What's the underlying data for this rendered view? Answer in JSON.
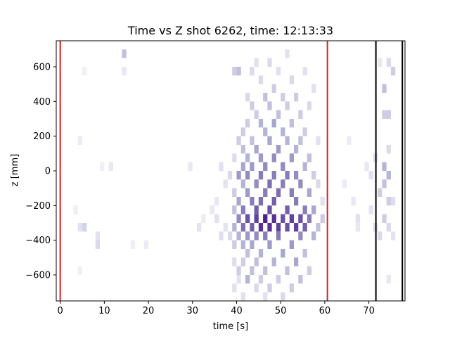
{
  "chart_data": {
    "type": "heatmap",
    "title": "Time vs Z shot 6262, time: 12:13:33",
    "xlabel": "time [s]",
    "ylabel": "z [mm]",
    "xlim": [
      -0.9,
      78.2
    ],
    "ylim": [
      -750,
      750
    ],
    "x_ticks": [
      0,
      10,
      20,
      30,
      40,
      50,
      60,
      70
    ],
    "y_ticks": [
      -600,
      -400,
      -200,
      0,
      200,
      400,
      600
    ],
    "x_tick_labels": [
      "0",
      "10",
      "20",
      "30",
      "40",
      "50",
      "60",
      "70"
    ],
    "y_tick_labels": [
      "−600",
      "−400",
      "−200",
      "0",
      "200",
      "400",
      "600"
    ],
    "colormap": "Purples",
    "color_range": [
      0,
      1
    ],
    "vlines": [
      {
        "x": 0,
        "color": "#e31a1c"
      },
      {
        "x": 60.6,
        "color": "#e31a1c"
      },
      {
        "x": 71.6,
        "color": "#000000"
      },
      {
        "x": 77.6,
        "color": "#000000"
      }
    ],
    "cells": [
      {
        "t": 14,
        "z": 675,
        "v": 0.35
      },
      {
        "t": 14,
        "z": 575,
        "v": 0.15
      },
      {
        "t": 5,
        "z": 575,
        "v": 0.08
      },
      {
        "t": 4,
        "z": 175,
        "v": 0.12
      },
      {
        "t": 9,
        "z": 25,
        "v": 0.1
      },
      {
        "t": 11,
        "z": 25,
        "v": 0.15
      },
      {
        "t": 5,
        "z": -325,
        "v": 0.28
      },
      {
        "t": 4,
        "z": -325,
        "v": 0.2
      },
      {
        "t": 8,
        "z": -375,
        "v": 0.2
      },
      {
        "t": 8,
        "z": -425,
        "v": 0.25
      },
      {
        "t": 4,
        "z": -575,
        "v": 0.08
      },
      {
        "t": 3,
        "z": -225,
        "v": 0.1
      },
      {
        "t": 16,
        "z": -425,
        "v": 0.1
      },
      {
        "t": 19,
        "z": -425,
        "v": 0.12
      },
      {
        "t": 29,
        "z": 25,
        "v": 0.15
      },
      {
        "t": 31,
        "z": -325,
        "v": 0.18
      },
      {
        "t": 32,
        "z": -275,
        "v": 0.12
      },
      {
        "t": 34,
        "z": -225,
        "v": 0.15
      },
      {
        "t": 35,
        "z": -275,
        "v": 0.2
      },
      {
        "t": 36,
        "z": -375,
        "v": 0.22
      },
      {
        "t": 37,
        "z": -325,
        "v": 0.18
      },
      {
        "t": 38,
        "z": -375,
        "v": 0.25
      },
      {
        "t": 35,
        "z": -175,
        "v": 0.15
      },
      {
        "t": 36,
        "z": 25,
        "v": 0.2
      },
      {
        "t": 37,
        "z": -75,
        "v": 0.18
      },
      {
        "t": 38,
        "z": -25,
        "v": 0.25
      },
      {
        "t": 39,
        "z": -125,
        "v": 0.3
      },
      {
        "t": 39,
        "z": -225,
        "v": 0.35
      },
      {
        "t": 39,
        "z": -325,
        "v": 0.4
      },
      {
        "t": 39,
        "z": -425,
        "v": 0.3
      },
      {
        "t": 39,
        "z": -525,
        "v": 0.22
      },
      {
        "t": 39,
        "z": -675,
        "v": 0.2
      },
      {
        "t": 39,
        "z": 75,
        "v": 0.22
      },
      {
        "t": 39,
        "z": 575,
        "v": 0.3
      },
      {
        "t": 40,
        "z": 575,
        "v": 0.35
      },
      {
        "t": 40,
        "z": 175,
        "v": 0.3
      },
      {
        "t": 40,
        "z": -25,
        "v": 0.5
      },
      {
        "t": 40,
        "z": -175,
        "v": 0.45
      },
      {
        "t": 40,
        "z": -275,
        "v": 0.55
      },
      {
        "t": 40,
        "z": -375,
        "v": 0.4
      },
      {
        "t": 40,
        "z": -575,
        "v": 0.3
      },
      {
        "t": 40,
        "z": -625,
        "v": 0.2
      },
      {
        "t": 41,
        "z": 225,
        "v": 0.3
      },
      {
        "t": 41,
        "z": 125,
        "v": 0.35
      },
      {
        "t": 41,
        "z": 25,
        "v": 0.45
      },
      {
        "t": 41,
        "z": -75,
        "v": 0.4
      },
      {
        "t": 41,
        "z": -225,
        "v": 0.6
      },
      {
        "t": 41,
        "z": -325,
        "v": 0.65
      },
      {
        "t": 41,
        "z": -425,
        "v": 0.4
      },
      {
        "t": 41,
        "z": -525,
        "v": 0.3
      },
      {
        "t": 41,
        "z": -725,
        "v": 0.2
      },
      {
        "t": 42,
        "z": 425,
        "v": 0.25
      },
      {
        "t": 42,
        "z": 275,
        "v": 0.3
      },
      {
        "t": 42,
        "z": 75,
        "v": 0.4
      },
      {
        "t": 42,
        "z": -25,
        "v": 0.55
      },
      {
        "t": 42,
        "z": -125,
        "v": 0.5
      },
      {
        "t": 42,
        "z": -275,
        "v": 0.75
      },
      {
        "t": 42,
        "z": -375,
        "v": 0.5
      },
      {
        "t": 42,
        "z": -475,
        "v": 0.35
      },
      {
        "t": 42,
        "z": -625,
        "v": 0.4
      },
      {
        "t": 43,
        "z": 575,
        "v": 0.25
      },
      {
        "t": 43,
        "z": 375,
        "v": 0.3
      },
      {
        "t": 43,
        "z": 175,
        "v": 0.35
      },
      {
        "t": 43,
        "z": 25,
        "v": 0.5
      },
      {
        "t": 43,
        "z": -175,
        "v": 0.6
      },
      {
        "t": 43,
        "z": -325,
        "v": 0.7
      },
      {
        "t": 43,
        "z": -425,
        "v": 0.45
      },
      {
        "t": 43,
        "z": -575,
        "v": 0.35
      },
      {
        "t": 44,
        "z": 625,
        "v": 0.2
      },
      {
        "t": 44,
        "z": 325,
        "v": 0.3
      },
      {
        "t": 44,
        "z": 125,
        "v": 0.45
      },
      {
        "t": 44,
        "z": -75,
        "v": 0.55
      },
      {
        "t": 44,
        "z": -225,
        "v": 0.7
      },
      {
        "t": 44,
        "z": -275,
        "v": 0.8
      },
      {
        "t": 44,
        "z": -375,
        "v": 0.55
      },
      {
        "t": 44,
        "z": -525,
        "v": 0.35
      },
      {
        "t": 44,
        "z": -675,
        "v": 0.25
      },
      {
        "t": 45,
        "z": 525,
        "v": 0.25
      },
      {
        "t": 45,
        "z": 275,
        "v": 0.4
      },
      {
        "t": 45,
        "z": 75,
        "v": 0.5
      },
      {
        "t": 45,
        "z": -25,
        "v": 0.6
      },
      {
        "t": 45,
        "z": -175,
        "v": 0.65
      },
      {
        "t": 45,
        "z": -325,
        "v": 0.85
      },
      {
        "t": 45,
        "z": -475,
        "v": 0.4
      },
      {
        "t": 45,
        "z": -625,
        "v": 0.3
      },
      {
        "t": 46,
        "z": 425,
        "v": 0.35
      },
      {
        "t": 46,
        "z": 225,
        "v": 0.4
      },
      {
        "t": 46,
        "z": 25,
        "v": 0.55
      },
      {
        "t": 46,
        "z": -125,
        "v": 0.6
      },
      {
        "t": 46,
        "z": -275,
        "v": 0.9
      },
      {
        "t": 46,
        "z": -375,
        "v": 0.6
      },
      {
        "t": 46,
        "z": -575,
        "v": 0.35
      },
      {
        "t": 46,
        "z": -725,
        "v": 0.2
      },
      {
        "t": 47,
        "z": 625,
        "v": 0.25
      },
      {
        "t": 47,
        "z": 375,
        "v": 0.35
      },
      {
        "t": 47,
        "z": 175,
        "v": 0.45
      },
      {
        "t": 47,
        "z": -75,
        "v": 0.65
      },
      {
        "t": 47,
        "z": -225,
        "v": 0.75
      },
      {
        "t": 47,
        "z": -325,
        "v": 0.85
      },
      {
        "t": 47,
        "z": -425,
        "v": 0.5
      },
      {
        "t": 47,
        "z": -675,
        "v": 0.3
      },
      {
        "t": 48,
        "z": 475,
        "v": 0.3
      },
      {
        "t": 48,
        "z": 275,
        "v": 0.45
      },
      {
        "t": 48,
        "z": 75,
        "v": 0.55
      },
      {
        "t": 48,
        "z": -25,
        "v": 0.6
      },
      {
        "t": 48,
        "z": -175,
        "v": 0.7
      },
      {
        "t": 48,
        "z": -275,
        "v": 0.85
      },
      {
        "t": 48,
        "z": -525,
        "v": 0.4
      },
      {
        "t": 49,
        "z": 575,
        "v": 0.2
      },
      {
        "t": 49,
        "z": 325,
        "v": 0.35
      },
      {
        "t": 49,
        "z": 125,
        "v": 0.5
      },
      {
        "t": 49,
        "z": -125,
        "v": 0.65
      },
      {
        "t": 49,
        "z": -325,
        "v": 0.8
      },
      {
        "t": 49,
        "z": -375,
        "v": 0.6
      },
      {
        "t": 49,
        "z": -625,
        "v": 0.3
      },
      {
        "t": 50,
        "z": 425,
        "v": 0.3
      },
      {
        "t": 50,
        "z": 225,
        "v": 0.4
      },
      {
        "t": 50,
        "z": 25,
        "v": 0.55
      },
      {
        "t": 50,
        "z": -75,
        "v": 0.6
      },
      {
        "t": 50,
        "z": -275,
        "v": 0.75
      },
      {
        "t": 50,
        "z": -475,
        "v": 0.45
      },
      {
        "t": 50,
        "z": -725,
        "v": 0.25
      },
      {
        "t": 51,
        "z": 675,
        "v": 0.2
      },
      {
        "t": 51,
        "z": 375,
        "v": 0.3
      },
      {
        "t": 51,
        "z": 175,
        "v": 0.4
      },
      {
        "t": 51,
        "z": -25,
        "v": 0.6
      },
      {
        "t": 51,
        "z": -225,
        "v": 0.7
      },
      {
        "t": 51,
        "z": -325,
        "v": 0.75
      },
      {
        "t": 51,
        "z": -575,
        "v": 0.35
      },
      {
        "t": 52,
        "z": 525,
        "v": 0.25
      },
      {
        "t": 52,
        "z": 275,
        "v": 0.35
      },
      {
        "t": 52,
        "z": 75,
        "v": 0.5
      },
      {
        "t": 52,
        "z": -125,
        "v": 0.6
      },
      {
        "t": 52,
        "z": -275,
        "v": 0.8
      },
      {
        "t": 52,
        "z": -425,
        "v": 0.5
      },
      {
        "t": 52,
        "z": -675,
        "v": 0.3
      },
      {
        "t": 53,
        "z": 425,
        "v": 0.3
      },
      {
        "t": 53,
        "z": 125,
        "v": 0.4
      },
      {
        "t": 53,
        "z": -25,
        "v": 0.55
      },
      {
        "t": 53,
        "z": -175,
        "v": 0.6
      },
      {
        "t": 53,
        "z": -325,
        "v": 0.8
      },
      {
        "t": 53,
        "z": -525,
        "v": 0.45
      },
      {
        "t": 54,
        "z": 325,
        "v": 0.3
      },
      {
        "t": 54,
        "z": 175,
        "v": 0.35
      },
      {
        "t": 54,
        "z": -75,
        "v": 0.55
      },
      {
        "t": 54,
        "z": -275,
        "v": 0.75
      },
      {
        "t": 54,
        "z": -375,
        "v": 0.55
      },
      {
        "t": 54,
        "z": -625,
        "v": 0.35
      },
      {
        "t": 55,
        "z": 575,
        "v": 0.2
      },
      {
        "t": 55,
        "z": 225,
        "v": 0.3
      },
      {
        "t": 55,
        "z": 25,
        "v": 0.4
      },
      {
        "t": 55,
        "z": -225,
        "v": 0.6
      },
      {
        "t": 55,
        "z": -325,
        "v": 0.7
      },
      {
        "t": 55,
        "z": -475,
        "v": 0.35
      },
      {
        "t": 56,
        "z": 375,
        "v": 0.25
      },
      {
        "t": 56,
        "z": 75,
        "v": 0.35
      },
      {
        "t": 56,
        "z": -125,
        "v": 0.45
      },
      {
        "t": 56,
        "z": -275,
        "v": 0.6
      },
      {
        "t": 56,
        "z": -575,
        "v": 0.3
      },
      {
        "t": 57,
        "z": 475,
        "v": 0.2
      },
      {
        "t": 57,
        "z": -25,
        "v": 0.3
      },
      {
        "t": 57,
        "z": -225,
        "v": 0.45
      },
      {
        "t": 57,
        "z": -375,
        "v": 0.4
      },
      {
        "t": 58,
        "z": 175,
        "v": 0.2
      },
      {
        "t": 58,
        "z": -75,
        "v": 0.25
      },
      {
        "t": 58,
        "z": -325,
        "v": 0.35
      },
      {
        "t": 59,
        "z": -275,
        "v": 0.3
      },
      {
        "t": 59,
        "z": -175,
        "v": 0.2
      },
      {
        "t": 64,
        "z": -75,
        "v": 0.12
      },
      {
        "t": 66,
        "z": -175,
        "v": 0.15
      },
      {
        "t": 67,
        "z": -275,
        "v": 0.2
      },
      {
        "t": 67,
        "z": -325,
        "v": 0.15
      },
      {
        "t": 65,
        "z": 175,
        "v": 0.12
      },
      {
        "t": 69,
        "z": 25,
        "v": 0.15
      },
      {
        "t": 70,
        "z": -25,
        "v": 0.2
      },
      {
        "t": 70,
        "z": -225,
        "v": 0.18
      },
      {
        "t": 71,
        "z": -325,
        "v": 0.2
      },
      {
        "t": 71,
        "z": 75,
        "v": 0.2
      },
      {
        "t": 72,
        "z": 625,
        "v": 0.15
      },
      {
        "t": 72,
        "z": -125,
        "v": 0.3
      },
      {
        "t": 72,
        "z": -375,
        "v": 0.25
      },
      {
        "t": 73,
        "z": 475,
        "v": 0.35
      },
      {
        "t": 73,
        "z": 325,
        "v": 0.3
      },
      {
        "t": 73,
        "z": 25,
        "v": 0.4
      },
      {
        "t": 73,
        "z": -75,
        "v": 0.35
      },
      {
        "t": 73,
        "z": -275,
        "v": 0.3
      },
      {
        "t": 74,
        "z": 625,
        "v": 0.25
      },
      {
        "t": 74,
        "z": 325,
        "v": 0.3
      },
      {
        "t": 74,
        "z": 125,
        "v": 0.25
      },
      {
        "t": 74,
        "z": -25,
        "v": 0.4
      },
      {
        "t": 74,
        "z": -175,
        "v": 0.3
      },
      {
        "t": 74,
        "z": -325,
        "v": 0.25
      },
      {
        "t": 74,
        "z": -625,
        "v": 0.15
      },
      {
        "t": 75,
        "z": 575,
        "v": 0.3
      },
      {
        "t": 75,
        "z": -175,
        "v": 0.22
      },
      {
        "t": 75,
        "z": -375,
        "v": 0.18
      }
    ]
  }
}
